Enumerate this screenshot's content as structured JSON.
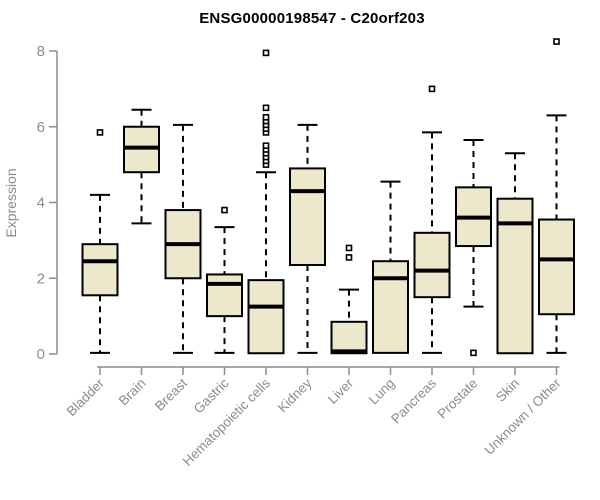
{
  "chart_data": {
    "type": "boxplot",
    "title": "ENSG00000198547 - C20orf203",
    "ylabel": "Expression",
    "xlabel": "",
    "ylim": [
      0,
      8.3
    ],
    "yticks": [
      "0",
      "2",
      "4",
      "6",
      "8"
    ],
    "ytick_values": [
      0,
      2,
      4,
      6,
      8
    ],
    "grid": "off",
    "legend": "none",
    "boxes": [
      {
        "label": "Bladder",
        "min": 0.03,
        "q1": 1.55,
        "median": 2.45,
        "q3": 2.9,
        "max": 4.2,
        "outliers": [
          5.85
        ]
      },
      {
        "label": "Brain",
        "min": 3.45,
        "q1": 4.8,
        "median": 5.45,
        "q3": 6.0,
        "max": 6.45,
        "outliers": []
      },
      {
        "label": "Breast",
        "min": 0.03,
        "q1": 2.0,
        "median": 2.9,
        "q3": 3.8,
        "max": 6.05,
        "outliers": []
      },
      {
        "label": "Gastric",
        "min": 0.03,
        "q1": 1.0,
        "median": 1.85,
        "q3": 2.1,
        "max": 3.35,
        "outliers": [
          3.8
        ]
      },
      {
        "label": "Hematopoietic cells",
        "min": 0.02,
        "q1": 0.02,
        "median": 1.25,
        "q3": 1.95,
        "max": 4.8,
        "outliers": [
          5.0,
          5.1,
          5.2,
          5.3,
          5.4,
          5.5,
          5.85,
          5.95,
          6.05,
          6.15,
          6.25,
          6.5,
          7.95
        ]
      },
      {
        "label": "Kidney",
        "min": 0.03,
        "q1": 2.35,
        "median": 4.3,
        "q3": 4.9,
        "max": 6.05,
        "outliers": []
      },
      {
        "label": "Liver",
        "min": 0.02,
        "q1": 0.02,
        "median": 0.07,
        "q3": 0.85,
        "max": 1.7,
        "outliers": [
          2.55,
          2.8
        ]
      },
      {
        "label": "Lung",
        "min": 0.03,
        "q1": 0.03,
        "median": 2.0,
        "q3": 2.45,
        "max": 4.55,
        "outliers": []
      },
      {
        "label": "Pancreas",
        "min": 0.03,
        "q1": 1.5,
        "median": 2.2,
        "q3": 3.2,
        "max": 5.85,
        "outliers": [
          7.0
        ]
      },
      {
        "label": "Prostate",
        "min": 1.25,
        "q1": 2.85,
        "median": 3.6,
        "q3": 4.4,
        "max": 5.65,
        "outliers": [
          0.03
        ]
      },
      {
        "label": "Skin",
        "min": 0.02,
        "q1": 0.02,
        "median": 3.45,
        "q3": 4.1,
        "max": 5.3,
        "outliers": []
      },
      {
        "label": "Unknown / Other",
        "min": 0.03,
        "q1": 1.05,
        "median": 2.5,
        "q3": 3.55,
        "max": 6.3,
        "outliers": [
          8.25
        ]
      }
    ],
    "colors": {
      "box_fill": "#EDE8CC",
      "box_border": "#000000",
      "median": "#000000",
      "whisker": "#000000",
      "outlier_fill": "#FFFFFF",
      "outlier_border": "#000000",
      "axis_line": "#8C8C8C",
      "axis_text": "#8C8C8C",
      "title": "#000000",
      "background": "#FFFFFF"
    }
  }
}
